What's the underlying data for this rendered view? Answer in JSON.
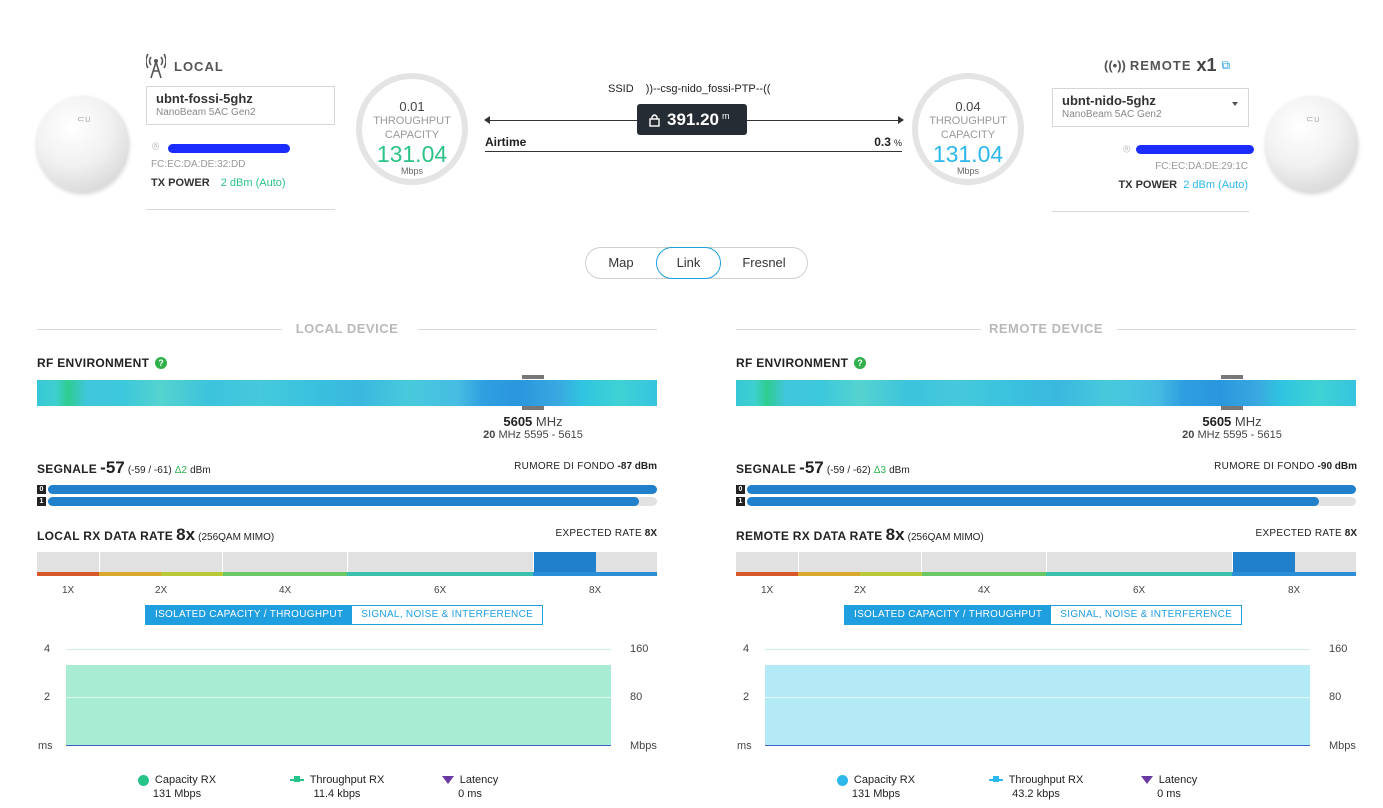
{
  "local": {
    "title": "LOCAL",
    "name": "ubnt-fossi-5ghz",
    "model": "NanoBeam 5AC Gen2",
    "mac": "FC:EC:DA:DE:32:DD",
    "tx_power_label": "TX POWER",
    "tx_power_value": "2 dBm (Auto)",
    "throughput_value": "0.01",
    "throughput_label": "THROUGHPUT",
    "capacity_label": "CAPACITY",
    "capacity_value": "131.04",
    "capacity_unit": "Mbps",
    "color": "#2bc287"
  },
  "remote": {
    "title": "REMOTE",
    "count": "x1",
    "name": "ubnt-nido-5ghz",
    "model": "NanoBeam 5AC Gen2",
    "mac": "FC:EC:DA:DE:29:1C",
    "tx_power_label": "TX POWER",
    "tx_power_value": "2 dBm (Auto)",
    "throughput_value": "0.04",
    "throughput_label": "THROUGHPUT",
    "capacity_label": "CAPACITY",
    "capacity_value": "131.04",
    "capacity_unit": "Mbps",
    "color": "#2db7ea"
  },
  "link": {
    "ssid_label": "SSID",
    "ssid_value": "))--csg-nido_fossi-PTP--((",
    "distance": "391.20",
    "distance_unit": "m",
    "airtime_label": "Airtime",
    "airtime_value": "0.3",
    "airtime_unit": "%"
  },
  "view_tabs": [
    "Map",
    "Link",
    "Fresnel"
  ],
  "active_view": "Link",
  "panels": [
    {
      "section_title": "LOCAL DEVICE",
      "rf_label": "RF ENVIRONMENT",
      "freq_value": "5605",
      "freq_unit": "MHz",
      "width_value": "20",
      "width_unit": "MHz",
      "range": "5595 - 5615",
      "signal_label": "SEGNALE",
      "signal_value": "-57",
      "signal_chains": "(-59 / -61)",
      "signal_delta": "Δ2",
      "signal_unit": "dBm",
      "noise_label": "RUMORE DI FONDO",
      "noise_value": "-87 dBm",
      "chain0": "0",
      "chain1": "1",
      "chain0_level": 1.0,
      "chain1_level": 0.97,
      "rx_label": "LOCAL RX DATA RATE",
      "rx_value": "8x",
      "rx_mod": "(256QAM MIMO)",
      "expected_label": "EXPECTED RATE",
      "expected_value": "8X",
      "ticks": [
        "1X",
        "2X",
        "4X",
        "6X",
        "8X"
      ],
      "tab_on": "ISOLATED CAPACITY / THROUGHPUT",
      "tab_off": "SIGNAL, NOISE & INTERFERENCE",
      "left_axis": [
        "4",
        "2",
        "ms"
      ],
      "right_axis": [
        "160",
        "80",
        "Mbps"
      ],
      "legend": [
        {
          "name": "Capacity RX",
          "value": "131 Mbps"
        },
        {
          "name": "Throughput RX",
          "value": "11.4 kbps"
        },
        {
          "name": "Latency",
          "value": "0 ms"
        }
      ],
      "fill_color": "#a8ecd4",
      "accent": "#27c48a"
    },
    {
      "section_title": "REMOTE DEVICE",
      "rf_label": "RF ENVIRONMENT",
      "freq_value": "5605",
      "freq_unit": "MHz",
      "width_value": "20",
      "width_unit": "MHz",
      "range": "5595 - 5615",
      "signal_label": "SEGNALE",
      "signal_value": "-57",
      "signal_chains": "(-59 / -62)",
      "signal_delta": "Δ3",
      "signal_unit": "dBm",
      "noise_label": "RUMORE DI FONDO",
      "noise_value": "-90 dBm",
      "chain0": "0",
      "chain1": "1",
      "chain0_level": 1.0,
      "chain1_level": 0.94,
      "rx_label": "REMOTE RX DATA RATE",
      "rx_value": "8x",
      "rx_mod": "(256QAM MIMO)",
      "expected_label": "EXPECTED RATE",
      "expected_value": "8X",
      "ticks": [
        "1X",
        "2X",
        "4X",
        "6X",
        "8X"
      ],
      "tab_on": "ISOLATED CAPACITY / THROUGHPUT",
      "tab_off": "SIGNAL, NOISE & INTERFERENCE",
      "left_axis": [
        "4",
        "2",
        "ms"
      ],
      "right_axis": [
        "160",
        "80",
        "Mbps"
      ],
      "legend": [
        {
          "name": "Capacity RX",
          "value": "131 Mbps"
        },
        {
          "name": "Throughput RX",
          "value": "43.2 kbps"
        },
        {
          "name": "Latency",
          "value": "0 ms"
        }
      ],
      "fill_color": "#b3eaf6",
      "accent": "#2db7ea"
    }
  ],
  "icons": {
    "local": "antenna-tower-icon",
    "remote": "broadcast-icon",
    "external": "external-link-icon",
    "location": "location-pin-icon",
    "lock": "lock-icon",
    "dropdown": "chevron-down-icon",
    "help": "help-icon"
  }
}
